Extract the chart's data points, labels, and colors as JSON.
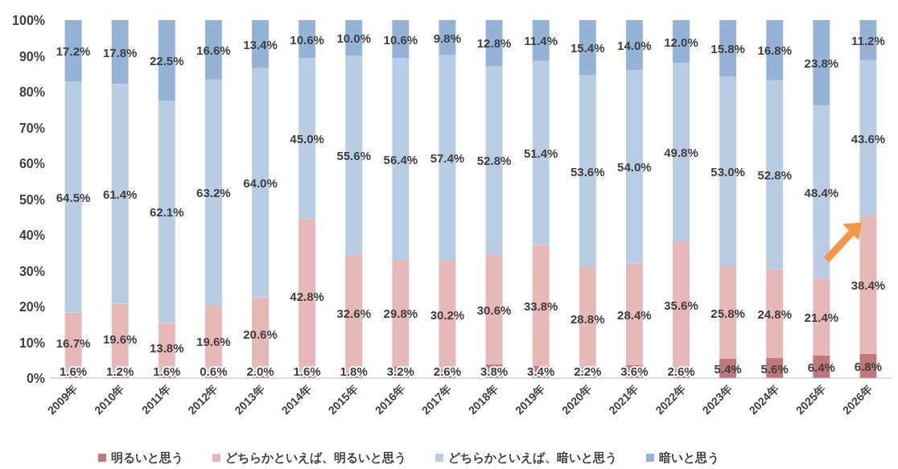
{
  "chart_data": {
    "type": "bar",
    "stacked": true,
    "legend": "bottom",
    "grid": false,
    "categories": [
      "2009年",
      "2010年",
      "2011年",
      "2012年",
      "2013年",
      "2014年",
      "2015年",
      "2016年",
      "2017年",
      "2018年",
      "2019年",
      "2020年",
      "2021年",
      "2022年",
      "2023年",
      "2024年",
      "2025年",
      "2026年"
    ],
    "ylim": [
      0,
      100
    ],
    "yticks": [
      {
        "value": 0,
        "label": "0%"
      },
      {
        "value": 10,
        "label": "10%"
      },
      {
        "value": 20,
        "label": "20%"
      },
      {
        "value": 30,
        "label": "30%"
      },
      {
        "value": 40,
        "label": "40%"
      },
      {
        "value": 50,
        "label": "50%"
      },
      {
        "value": 60,
        "label": "60%"
      },
      {
        "value": 70,
        "label": "70%"
      },
      {
        "value": 80,
        "label": "80%"
      },
      {
        "value": 90,
        "label": "90%"
      },
      {
        "value": 100,
        "label": "100%"
      }
    ],
    "series": [
      {
        "name": "明るいと思う",
        "color": "#c0787a",
        "values": [
          1.6,
          1.2,
          1.6,
          0.6,
          2.0,
          1.6,
          1.8,
          3.2,
          2.6,
          3.8,
          3.4,
          2.2,
          3.6,
          2.6,
          5.4,
          5.6,
          6.4,
          6.8
        ],
        "value_labels": [
          "1.6%",
          "1.2%",
          "1.6%",
          "0.6%",
          "2.0%",
          "1.6%",
          "1.8%",
          "3.2%",
          "2.6%",
          "3.8%",
          "3.4%",
          "2.2%",
          "3.6%",
          "2.6%",
          "5.4%",
          "5.6%",
          "6.4%",
          "6.8%"
        ]
      },
      {
        "name": "どちらかといえば、明るいと思う",
        "color": "#e6b8b7",
        "values": [
          16.7,
          19.6,
          13.8,
          19.6,
          20.6,
          42.8,
          32.6,
          29.8,
          30.2,
          30.6,
          33.8,
          28.8,
          28.4,
          35.6,
          25.8,
          24.8,
          21.4,
          38.4
        ],
        "value_labels": [
          "16.7%",
          "19.6%",
          "13.8%",
          "19.6%",
          "20.6%",
          "42.8%",
          "32.6%",
          "29.8%",
          "30.2%",
          "30.6%",
          "33.8%",
          "28.8%",
          "28.4%",
          "35.6%",
          "25.8%",
          "24.8%",
          "21.4%",
          "38.4%"
        ]
      },
      {
        "name": "どちらかといえば、暗いと思う",
        "color": "#b8cce4",
        "values": [
          64.5,
          61.4,
          62.1,
          63.2,
          64.0,
          45.0,
          55.6,
          56.4,
          57.4,
          52.8,
          51.4,
          53.6,
          54.0,
          49.8,
          53.0,
          52.8,
          48.4,
          43.6
        ],
        "value_labels": [
          "64.5%",
          "61.4%",
          "62.1%",
          "63.2%",
          "64.0%",
          "45.0%",
          "55.6%",
          "56.4%",
          "57.4%",
          "52.8%",
          "51.4%",
          "53.6%",
          "54.0%",
          "49.8%",
          "53.0%",
          "52.8%",
          "48.4%",
          "43.6%"
        ]
      },
      {
        "name": "暗いと思う",
        "color": "#95b3d7",
        "values": [
          17.2,
          17.8,
          22.5,
          16.6,
          13.4,
          10.6,
          10.0,
          10.6,
          9.8,
          12.8,
          11.4,
          15.4,
          14.0,
          12.0,
          15.8,
          16.8,
          23.8,
          11.2
        ],
        "value_labels": [
          "17.2%",
          "17.8%",
          "22.5%",
          "16.6%",
          "13.4%",
          "10.6%",
          "10.0%",
          "10.6%",
          "9.8%",
          "12.8%",
          "11.4%",
          "15.4%",
          "14.0%",
          "12.0%",
          "15.8%",
          "16.8%",
          "23.8%",
          "11.2%"
        ]
      }
    ]
  }
}
